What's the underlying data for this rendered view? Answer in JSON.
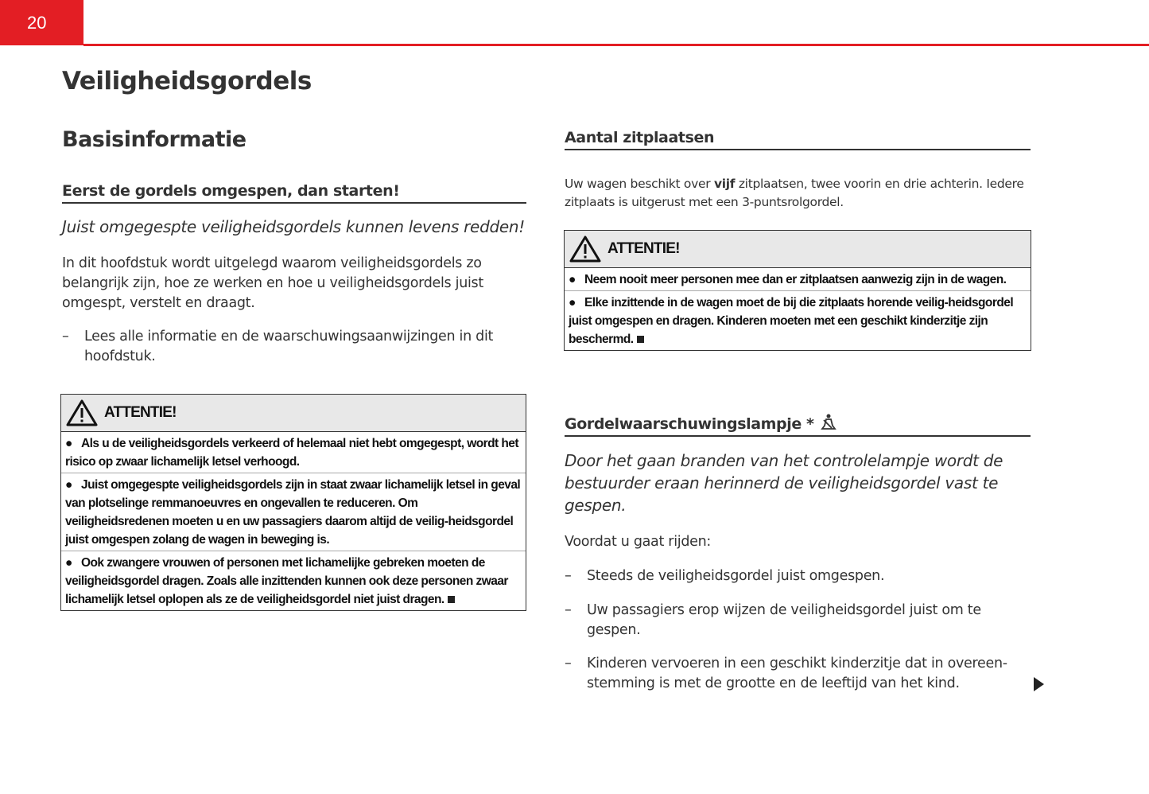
{
  "page_number": "20",
  "chapter_title": "Veiligheidsgordels",
  "section_title": "Basisinformatie",
  "left": {
    "subheading": "Eerst de gordels omgespen, dan starten!",
    "intro": "Juist omgegespte veiligheidsgordels kunnen levens redden!",
    "paragraph": "In dit hoofdstuk wordt uitgelegd waarom veiligheidsgordels zo belangrijk zijn, hoe ze werken en hoe u veiligheidsgordels juist omgespt, verstelt en draagt.",
    "list": [
      "Lees alle informatie en de waarschuwingsaanwijzingen in dit hoofdstuk."
    ],
    "warning": {
      "title": "ATTENTIE!",
      "items": [
        "Als u de veiligheidsgordels verkeerd of helemaal niet hebt omgegespt, wordt het risico op zwaar lichamelijk letsel verhoogd.",
        "Juist omgegespte veiligheidsgordels zijn in staat zwaar lichamelijk letsel in geval van plotselinge remmanoeuvres en ongevallen te reduceren. Om veiligheidsredenen moeten u en uw passagiers daarom altijd de veilig-heidsgordel juist omgespen zolang de wagen in beweging is.",
        "Ook zwangere vrouwen of personen met lichamelijke gebreken moeten de veiligheidsgordel dragen. Zoals alle inzittenden kunnen ook deze personen zwaar lichamelijk letsel oplopen als ze de veiligheidsgordel niet juist dragen."
      ]
    }
  },
  "right": {
    "seats": {
      "heading": "Aantal zitplaatsen",
      "text_before": "Uw wagen beschikt over ",
      "text_bold": "vijf",
      "text_after": " zitplaatsen, twee voorin en drie achterin. Iedere zitplaats is uitgerust met een 3-puntsrolgordel.",
      "warning": {
        "title": "ATTENTIE!",
        "items": [
          "Neem nooit meer personen mee dan er zitplaatsen aanwezig zijn in de wagen.",
          "Elke inzittende in de wagen moet de bij die zitplaats horende veilig-heidsgordel juist omgespen en dragen. Kinderen moeten met een geschikt kinderzitje zijn beschermd."
        ]
      }
    },
    "lamp": {
      "heading": "Gordelwaarschuwingslampje *",
      "icon": "seatbelt-warning-icon",
      "intro": "Door het gaan branden van het controlelampje wordt de bestuurder eraan herinnerd de veiligheidsgordel vast te gespen.",
      "lead": "Voordat u gaat rijden:",
      "list": [
        "Steeds de veiligheidsgordel juist omgespen.",
        "Uw passagiers erop wijzen de veiligheidsgordel juist om te gespen.",
        "Kinderen vervoeren in een geschikt kinderzitje dat in overeen-stemming is met de grootte en de leeftijd van het kind."
      ]
    }
  },
  "continue_icon": "arrow-right-icon",
  "colors": {
    "accent": "#e31e24",
    "warning_header": "#e8e8e8"
  }
}
